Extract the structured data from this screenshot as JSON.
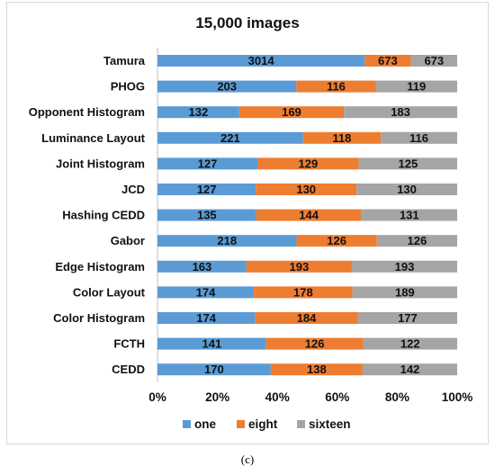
{
  "chart_data": {
    "type": "bar",
    "orientation": "horizontal",
    "stacking": "percent",
    "title": "15,000 images",
    "categories": [
      "Tamura",
      "PHOG",
      "Opponent Histogram",
      "Luminance Layout",
      "Joint Histogram",
      "JCD",
      "Hashing CEDD",
      "Gabor",
      "Edge Histogram",
      "Color Layout",
      "Color Histogram",
      "FCTH",
      "CEDD"
    ],
    "series": [
      {
        "name": "one",
        "color": "#5b9bd5",
        "values": [
          3014,
          203,
          132,
          221,
          127,
          127,
          135,
          218,
          163,
          174,
          174,
          141,
          170
        ]
      },
      {
        "name": "eight",
        "color": "#ed7d31",
        "values": [
          673,
          116,
          169,
          118,
          129,
          130,
          144,
          126,
          193,
          178,
          184,
          126,
          138
        ]
      },
      {
        "name": "sixteen",
        "color": "#a5a5a5",
        "values": [
          673,
          119,
          183,
          116,
          125,
          130,
          131,
          126,
          193,
          189,
          177,
          122,
          142
        ]
      }
    ],
    "xticks": [
      "0%",
      "20%",
      "40%",
      "60%",
      "80%",
      "100%"
    ],
    "xlim": [
      0,
      100
    ],
    "grid": false,
    "legend_position": "bottom"
  },
  "caption": "(c)"
}
